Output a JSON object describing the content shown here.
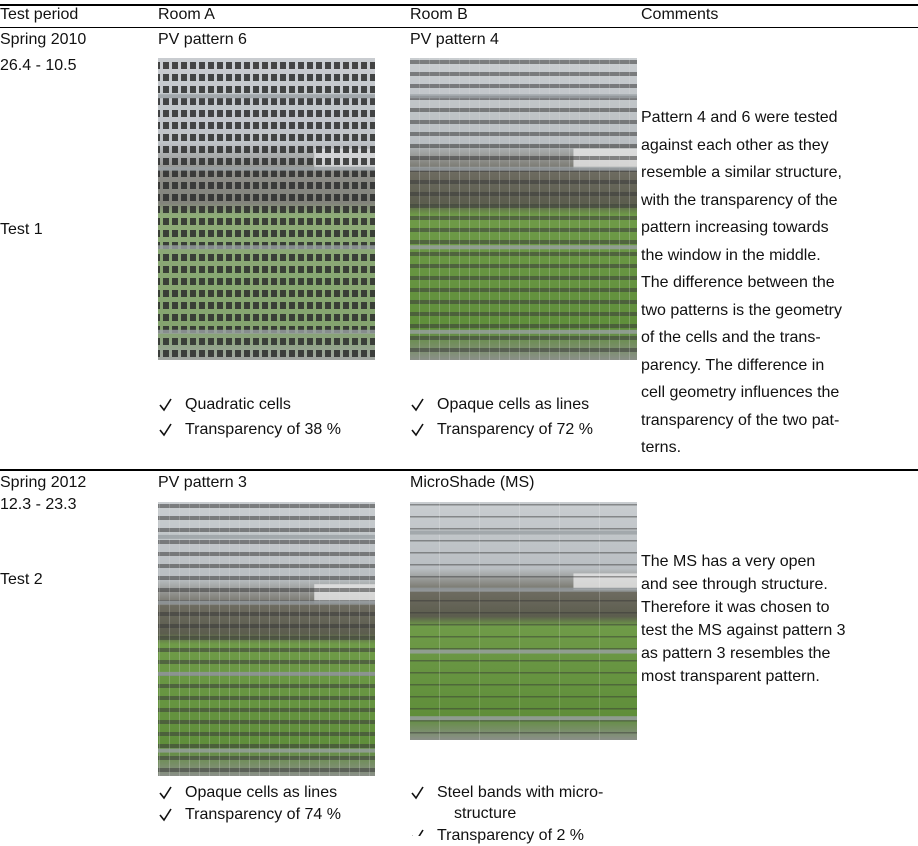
{
  "header": {
    "cells": [
      "Test period",
      "Room A",
      "Room B",
      "Comments"
    ]
  },
  "rows": [
    {
      "period": [
        "Spring 2010",
        "26.4 - 10.5",
        "Test 1"
      ],
      "room_a": {
        "title": "PV pattern 6",
        "bullets": [
          [
            "Quadratic cells"
          ],
          [
            "Transparency of 38 %"
          ]
        ]
      },
      "room_b": {
        "title": "PV pattern 4",
        "bullets": [
          [
            "Opaque cells as lines"
          ],
          [
            "Transparency of 72 %"
          ]
        ]
      },
      "comments": [
        "Pattern 4 and 6 were tested",
        "against each other as they",
        "resemble a similar structure,",
        "with the transparency of the",
        "pattern increasing towards",
        "the window in the middle.",
        "The difference between the",
        "two patterns is the geometry",
        "of the cells and the trans-",
        "parency. The difference in",
        "cell geometry influences the",
        "transparency of the two pat-",
        "terns."
      ]
    },
    {
      "period": [
        "Spring 2012",
        "12.3 - 23.3",
        "Test 2"
      ],
      "room_a": {
        "title": "PV pattern 3",
        "bullets": [
          [
            "Opaque cells as lines"
          ],
          [
            "Transparency of 74 %"
          ]
        ]
      },
      "room_b": {
        "title": "MicroShade (MS)",
        "bullets": [
          [
            "Steel bands with micro-",
            "structure"
          ],
          [
            "Transparency of 2 %"
          ]
        ]
      },
      "comments": [
        "The MS has a very open",
        "and see through structure.",
        "Therefore it was chosen to",
        "test the MS against pattern 3",
        "as pattern 3 resembles the",
        "most transparent pattern."
      ]
    }
  ]
}
